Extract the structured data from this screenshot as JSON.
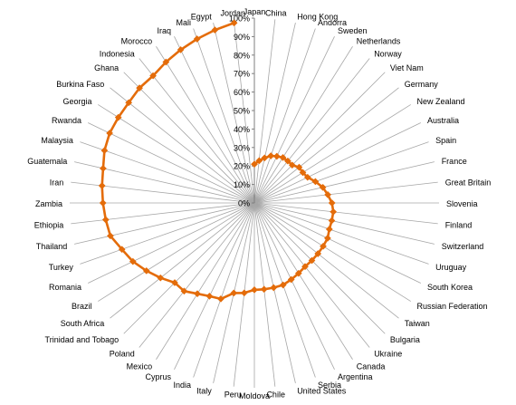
{
  "chart_data": {
    "type": "radar",
    "title": "",
    "rlim": [
      0,
      100
    ],
    "r_ticks": [
      0,
      10,
      20,
      30,
      40,
      50,
      60,
      70,
      80,
      90,
      100
    ],
    "r_tick_labels": [
      "0%",
      "10%",
      "20%",
      "30%",
      "40%",
      "50%",
      "60%",
      "70%",
      "80%",
      "90%",
      "100%"
    ],
    "grid": true,
    "legend": "none",
    "colors": {
      "series": "#E46C0A",
      "spokes": "#A6A6A6",
      "axis": "#7F7F7F"
    },
    "categories": [
      "Japan",
      "China",
      "Hong Kong",
      "Andorra",
      "Sweden",
      "Netherlands",
      "Norway",
      "Viet Nam",
      "Germany",
      "New Zealand",
      "Australia",
      "Spain",
      "France",
      "Great Britain",
      "Slovenia",
      "Finland",
      "Switzerland",
      "Uruguay",
      "South Korea",
      "Russian Federation",
      "Taiwan",
      "Bulgaria",
      "Ukraine",
      "Canada",
      "Argentina",
      "Serbia",
      "United States",
      "Chile",
      "Moldova",
      "Peru",
      "Italy",
      "India",
      "Cyprus",
      "Mexico",
      "Poland",
      "Trinidad and Tobago",
      "South Africa",
      "Brazil",
      "Romania",
      "Turkey",
      "Thailand",
      "Ethiopia",
      "Zambia",
      "Iran",
      "Guatemala",
      "Malaysia",
      "Rwanda",
      "Georgia",
      "Burkina Faso",
      "Ghana",
      "Indonesia",
      "Morocco",
      "Iraq",
      "Mali",
      "Egypt",
      "Jordan"
    ],
    "series": [
      {
        "values": [
          21,
          23,
          25,
          27,
          28,
          29,
          29,
          29,
          31,
          31,
          32,
          35,
          38,
          40,
          42,
          43,
          43,
          43,
          44,
          44,
          44,
          44,
          44,
          45,
          46,
          47,
          47,
          47,
          47,
          49,
          50,
          55,
          56,
          58,
          61,
          61,
          65,
          69,
          73,
          76,
          80,
          81,
          82,
          83,
          84,
          86,
          87,
          87,
          87,
          88,
          88,
          90,
          92,
          94,
          96,
          98
        ]
      }
    ]
  }
}
